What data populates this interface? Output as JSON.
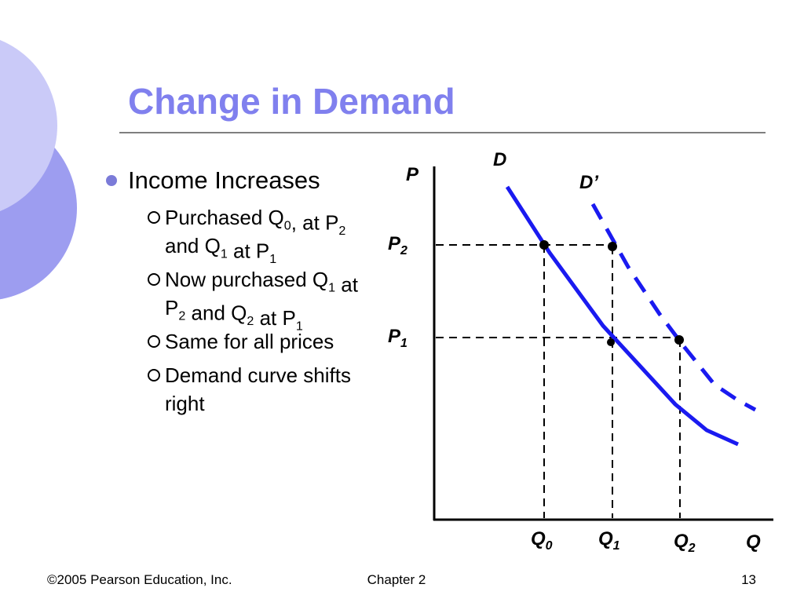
{
  "title": "Change in Demand",
  "bullets": [
    {
      "runs": [
        {
          "text": "Income Increases"
        }
      ],
      "subbullets": [
        {
          "lines": [
            [
              {
                "text": "Purchased Q"
              },
              {
                "sub": "0"
              },
              {
                "text": ", at P"
              },
              {
                "sub": "2"
              }
            ],
            [
              {
                "text": "and Q"
              },
              {
                "sub": "1"
              },
              {
                "text": " at P"
              },
              {
                "sub": "1"
              }
            ]
          ]
        },
        {
          "lines": [
            [
              {
                "text": "Now purchased Q"
              },
              {
                "sub": "1"
              },
              {
                "text": " at"
              }
            ],
            [
              {
                "text": "P"
              },
              {
                "sub": "2"
              },
              {
                "text": " and Q"
              },
              {
                "sub": "2"
              },
              {
                "text": " at P"
              },
              {
                "sub": "1"
              }
            ]
          ]
        },
        {
          "lines": [
            [
              {
                "text": "Same for all prices"
              }
            ]
          ]
        },
        {
          "lines": [
            [
              {
                "text": "Demand curve shifts"
              }
            ],
            [
              {
                "text": "right"
              }
            ]
          ]
        }
      ]
    }
  ],
  "diagram": {
    "y_axis": "P",
    "x_axis": "Q",
    "curve_d": "D",
    "curve_d_shifted": "D’",
    "price_labels": [
      {
        "text": "P",
        "sub": "2"
      },
      {
        "text": "P",
        "sub": "1"
      }
    ],
    "quantity_labels": [
      {
        "text": "Q",
        "sub": "0"
      },
      {
        "text": "Q",
        "sub": "1"
      },
      {
        "text": "Q",
        "sub": "2"
      }
    ]
  },
  "footer": {
    "left": "©2005 Pearson Education, Inc.",
    "center": "Chapter 2",
    "right": "13"
  }
}
